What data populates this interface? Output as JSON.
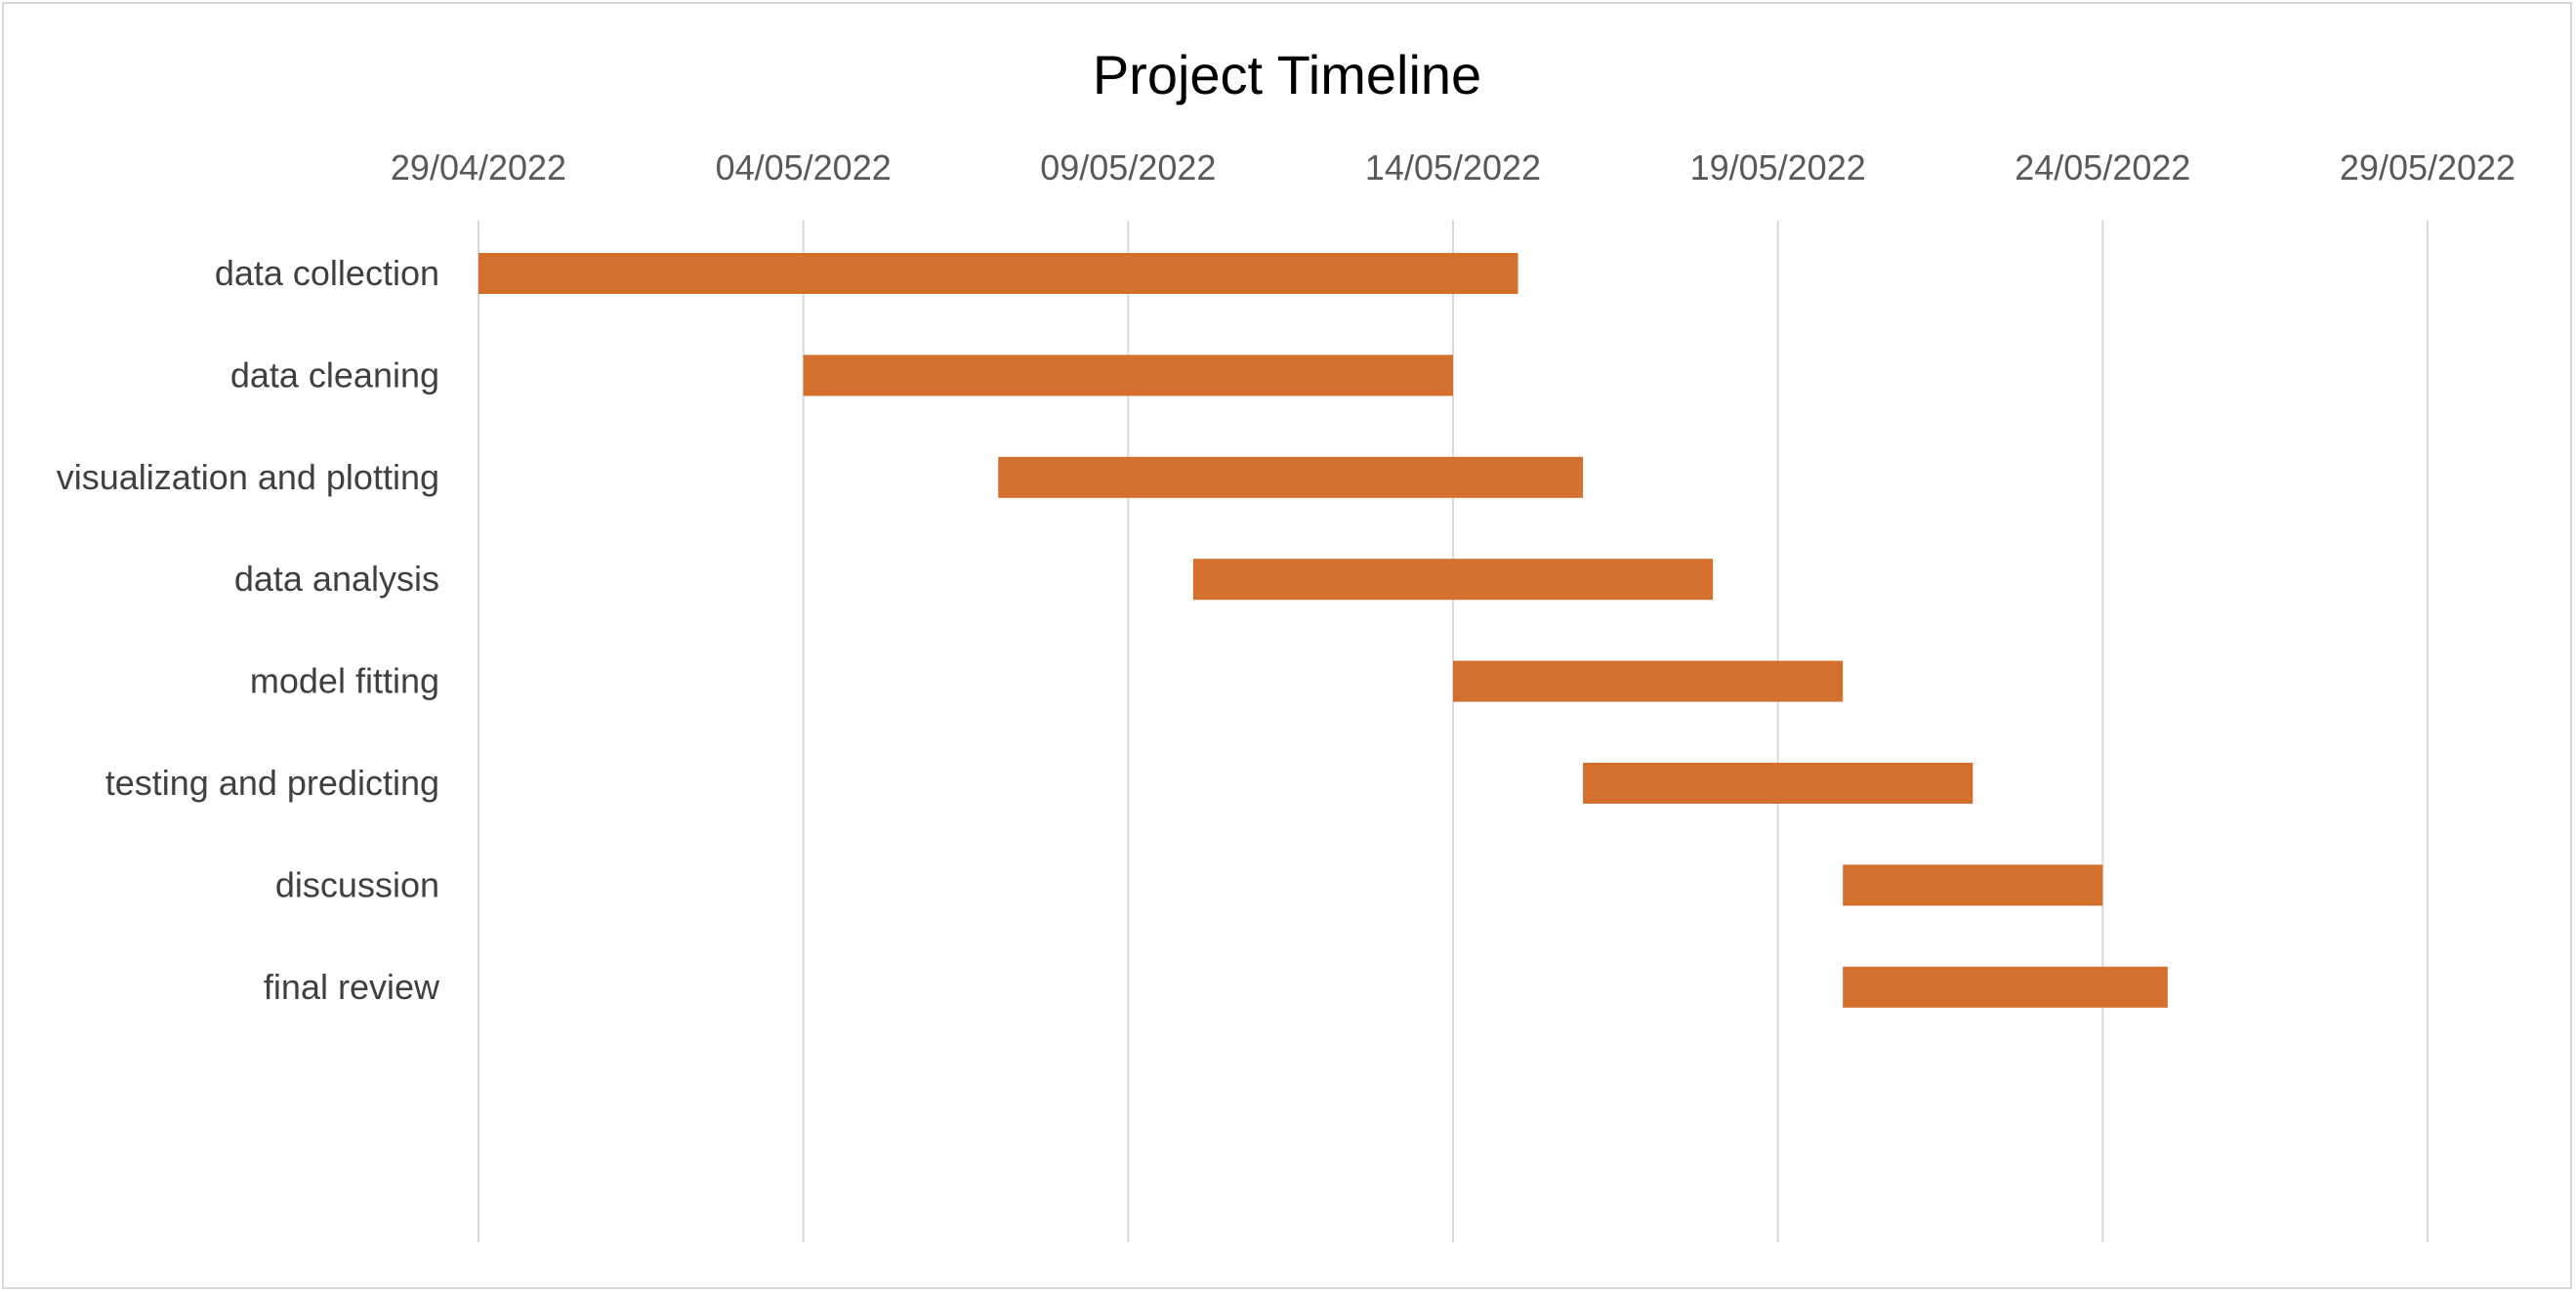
{
  "chart_data": {
    "type": "bar",
    "orientation": "horizontal",
    "title": "Project Timeline",
    "xlabel": "",
    "ylabel": "",
    "x_axis_position": "top",
    "xlim": [
      "29/04/2022",
      "29/05/2022"
    ],
    "x_ticks": [
      "29/04/2022",
      "04/05/2022",
      "09/05/2022",
      "14/05/2022",
      "19/05/2022",
      "24/05/2022",
      "29/05/2022"
    ],
    "grid": true,
    "legend": "none",
    "bar_color": "#D4702E",
    "tasks": [
      {
        "label": "data collection",
        "start": "29/04/2022",
        "end": "15/05/2022"
      },
      {
        "label": "data cleaning",
        "start": "04/05/2022",
        "end": "14/05/2022"
      },
      {
        "label": "visualization and plotting",
        "start": "07/05/2022",
        "end": "16/05/2022"
      },
      {
        "label": "data analysis",
        "start": "10/05/2022",
        "end": "18/05/2022"
      },
      {
        "label": "model fitting",
        "start": "14/05/2022",
        "end": "20/05/2022"
      },
      {
        "label": "testing and predicting",
        "start": "16/05/2022",
        "end": "22/05/2022"
      },
      {
        "label": "discussion",
        "start": "20/05/2022",
        "end": "24/05/2022"
      },
      {
        "label": "final review",
        "start": "20/05/2022",
        "end": "25/05/2022"
      }
    ]
  }
}
